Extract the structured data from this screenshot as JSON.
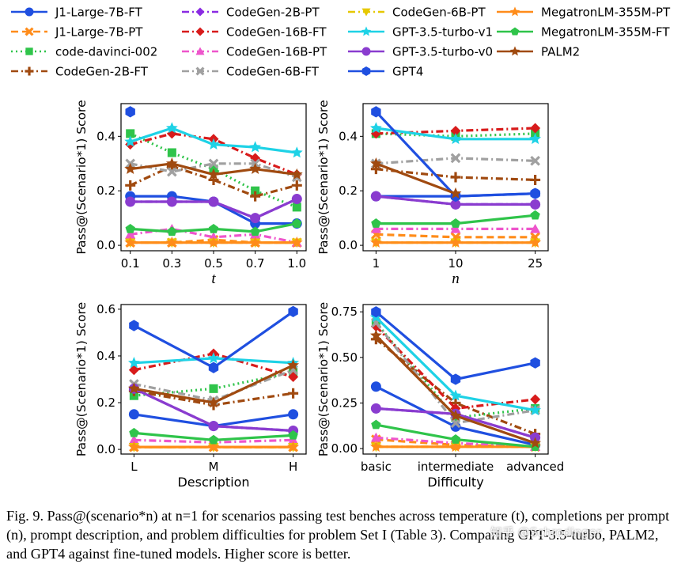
{
  "legend": {
    "entries": [
      {
        "name": "J1-Large-7B-FT",
        "color": "#1f4fe0",
        "dash": "solid",
        "marker": "circle"
      },
      {
        "name": "J1-Large-7B-PT",
        "color": "#ff8c1a",
        "dash": "dashed",
        "marker": "x"
      },
      {
        "name": "code-davinci-002",
        "color": "#2fc44a",
        "dash": "dotted",
        "marker": "square"
      },
      {
        "name": "CodeGen-2B-FT",
        "color": "#a04a10",
        "dash": "dashdot",
        "marker": "plus"
      },
      {
        "name": "CodeGen-2B-PT",
        "color": "#8a2be2",
        "dash": "dashdot",
        "marker": "diamond"
      },
      {
        "name": "CodeGen-16B-FT",
        "color": "#d81b1b",
        "dash": "dashdot",
        "marker": "diamond"
      },
      {
        "name": "CodeGen-16B-PT",
        "color": "#ee55cc",
        "dash": "dashdot",
        "marker": "triangle"
      },
      {
        "name": "CodeGen-6B-FT",
        "color": "#a0a0a0",
        "dash": "dashdot",
        "marker": "x"
      },
      {
        "name": "CodeGen-6B-PT",
        "color": "#e6c800",
        "dash": "dashdot",
        "marker": "triangle-down"
      },
      {
        "name": "GPT-3.5-turbo-v1",
        "color": "#1ed2e6",
        "dash": "solid",
        "marker": "star"
      },
      {
        "name": "GPT-3.5-turbo-v0",
        "color": "#8a3ccf",
        "dash": "solid",
        "marker": "circle"
      },
      {
        "name": "GPT4",
        "color": "#1f4fe0",
        "dash": "solid",
        "marker": "hexagon"
      },
      {
        "name": "MegatronLM-355M-PT",
        "color": "#ff8c1a",
        "dash": "solid",
        "marker": "star"
      },
      {
        "name": "MegatronLM-355M-FT",
        "color": "#2fc44a",
        "dash": "solid",
        "marker": "pentagon"
      },
      {
        "name": "PALM2",
        "color": "#a04a10",
        "dash": "solid",
        "marker": "star"
      }
    ]
  },
  "chart_data": [
    {
      "type": "line",
      "xlabel": "t",
      "ylabel": "Pass@(Scenario*1) Score",
      "categories": [
        "0.1",
        "0.3",
        "0.5",
        "0.7",
        "1.0"
      ],
      "ylim": [
        -0.02,
        0.52
      ],
      "yticks": [
        "0.0",
        "0.2",
        "0.4"
      ],
      "grid": false,
      "series": [
        {
          "name": "J1-Large-7B-FT",
          "values": [
            0.18,
            0.18,
            0.16,
            0.08,
            0.08
          ]
        },
        {
          "name": "J1-Large-7B-PT",
          "values": [
            0.01,
            0.01,
            0.02,
            0.01,
            0.01
          ]
        },
        {
          "name": "code-davinci-002",
          "values": [
            0.41,
            0.34,
            0.28,
            0.2,
            0.14
          ]
        },
        {
          "name": "CodeGen-2B-FT",
          "values": [
            0.22,
            0.29,
            0.24,
            0.18,
            0.22
          ]
        },
        {
          "name": "CodeGen-2B-PT",
          "values": [
            0.16,
            0.16,
            0.16,
            0.1,
            0.17
          ]
        },
        {
          "name": "CodeGen-16B-FT",
          "values": [
            0.37,
            0.41,
            0.39,
            0.32,
            0.26
          ]
        },
        {
          "name": "CodeGen-16B-PT",
          "values": [
            0.04,
            0.06,
            0.03,
            0.04,
            0.01
          ]
        },
        {
          "name": "CodeGen-6B-FT",
          "values": [
            0.3,
            0.27,
            0.3,
            0.3,
            0.25
          ]
        },
        {
          "name": "CodeGen-6B-PT",
          "values": [
            0.01,
            0.01,
            0.01,
            0.01,
            0.01
          ]
        },
        {
          "name": "GPT-3.5-turbo-v1",
          "values": [
            0.38,
            0.43,
            0.37,
            0.36,
            0.34
          ]
        },
        {
          "name": "GPT-3.5-turbo-v0",
          "values": [
            0.16,
            0.16,
            0.16,
            0.1,
            0.17
          ]
        },
        {
          "name": "GPT4",
          "values": [
            0.49,
            null,
            null,
            null,
            null
          ]
        },
        {
          "name": "MegatronLM-355M-PT",
          "values": [
            0.01,
            0.01,
            0.01,
            0.01,
            0.01
          ]
        },
        {
          "name": "MegatronLM-355M-FT",
          "values": [
            0.06,
            0.05,
            0.06,
            0.05,
            0.08
          ]
        },
        {
          "name": "PALM2",
          "values": [
            0.28,
            0.3,
            0.26,
            0.28,
            0.26
          ]
        }
      ]
    },
    {
      "type": "line",
      "xlabel": "n",
      "ylabel": "Pass@(Scenario*1) Score",
      "categories": [
        "1",
        "10",
        "25"
      ],
      "ylim": [
        -0.02,
        0.52
      ],
      "yticks": [
        "0.0",
        "0.2",
        "0.4"
      ],
      "grid": false,
      "series": [
        {
          "name": "J1-Large-7B-FT",
          "values": [
            0.18,
            0.18,
            0.19
          ]
        },
        {
          "name": "J1-Large-7B-PT",
          "values": [
            0.04,
            0.03,
            0.03
          ]
        },
        {
          "name": "code-davinci-002",
          "values": [
            0.41,
            0.4,
            0.41
          ]
        },
        {
          "name": "CodeGen-2B-FT",
          "values": [
            0.28,
            0.25,
            0.24
          ]
        },
        {
          "name": "CodeGen-2B-PT",
          "values": [
            0.18,
            0.15,
            0.15
          ]
        },
        {
          "name": "CodeGen-16B-FT",
          "values": [
            0.41,
            0.42,
            0.43
          ]
        },
        {
          "name": "CodeGen-16B-PT",
          "values": [
            0.06,
            0.06,
            0.06
          ]
        },
        {
          "name": "CodeGen-6B-FT",
          "values": [
            0.3,
            0.32,
            0.31
          ]
        },
        {
          "name": "CodeGen-6B-PT",
          "values": [
            0.01,
            0.01,
            0.01
          ]
        },
        {
          "name": "GPT-3.5-turbo-v1",
          "values": [
            0.43,
            0.39,
            0.39
          ]
        },
        {
          "name": "GPT-3.5-turbo-v0",
          "values": [
            0.18,
            0.15,
            0.15
          ]
        },
        {
          "name": "GPT4",
          "values": [
            0.49,
            0.18,
            0.19
          ]
        },
        {
          "name": "MegatronLM-355M-PT",
          "values": [
            0.01,
            0.01,
            0.01
          ]
        },
        {
          "name": "MegatronLM-355M-FT",
          "values": [
            0.08,
            0.08,
            0.11
          ]
        },
        {
          "name": "PALM2",
          "values": [
            0.3,
            0.19,
            null
          ]
        }
      ]
    },
    {
      "type": "line",
      "xlabel": "Description",
      "ylabel": "Pass@(Scenario*1) Score",
      "categories": [
        "L",
        "M",
        "H"
      ],
      "ylim": [
        -0.02,
        0.62
      ],
      "yticks": [
        "0.0",
        "0.2",
        "0.4",
        "0.6"
      ],
      "grid": false,
      "series": [
        {
          "name": "J1-Large-7B-FT",
          "values": [
            0.15,
            0.1,
            0.15
          ]
        },
        {
          "name": "J1-Large-7B-PT",
          "values": [
            0.01,
            0.01,
            0.01
          ]
        },
        {
          "name": "code-davinci-002",
          "values": [
            0.23,
            0.26,
            0.33
          ]
        },
        {
          "name": "CodeGen-2B-FT",
          "values": [
            0.25,
            0.19,
            0.24
          ]
        },
        {
          "name": "CodeGen-2B-PT",
          "values": [
            0.26,
            0.1,
            0.08
          ]
        },
        {
          "name": "CodeGen-16B-FT",
          "values": [
            0.34,
            0.41,
            0.31
          ]
        },
        {
          "name": "CodeGen-16B-PT",
          "values": [
            0.04,
            0.03,
            0.04
          ]
        },
        {
          "name": "CodeGen-6B-FT",
          "values": [
            0.28,
            0.21,
            0.34
          ]
        },
        {
          "name": "CodeGen-6B-PT",
          "values": [
            0.01,
            0.01,
            0.01
          ]
        },
        {
          "name": "GPT-3.5-turbo-v1",
          "values": [
            0.37,
            0.39,
            0.37
          ]
        },
        {
          "name": "GPT-3.5-turbo-v0",
          "values": [
            0.26,
            0.1,
            0.08
          ]
        },
        {
          "name": "GPT4",
          "values": [
            0.53,
            0.35,
            0.59
          ]
        },
        {
          "name": "MegatronLM-355M-PT",
          "values": [
            0.01,
            0.01,
            0.01
          ]
        },
        {
          "name": "MegatronLM-355M-FT",
          "values": [
            0.07,
            0.04,
            0.06
          ]
        },
        {
          "name": "PALM2",
          "values": [
            0.26,
            0.2,
            0.36
          ]
        }
      ]
    },
    {
      "type": "line",
      "xlabel": "Difficulty",
      "ylabel": "Pass@(Scenario*1) Score",
      "categories": [
        "basic",
        "intermediate",
        "advanced"
      ],
      "ylim": [
        -0.03,
        0.79
      ],
      "yticks": [
        "0.00",
        "0.25",
        "0.50",
        "0.75"
      ],
      "grid": false,
      "series": [
        {
          "name": "J1-Large-7B-FT",
          "values": [
            0.34,
            0.12,
            0.02
          ]
        },
        {
          "name": "J1-Large-7B-PT",
          "values": [
            0.05,
            0.02,
            0.01
          ]
        },
        {
          "name": "code-davinci-002",
          "values": [
            0.69,
            0.17,
            0.22
          ]
        },
        {
          "name": "CodeGen-2B-FT",
          "values": [
            0.6,
            0.25,
            0.08
          ]
        },
        {
          "name": "CodeGen-2B-PT",
          "values": [
            0.22,
            0.19,
            0.06
          ]
        },
        {
          "name": "CodeGen-16B-FT",
          "values": [
            0.67,
            0.22,
            0.27
          ]
        },
        {
          "name": "CodeGen-16B-PT",
          "values": [
            0.06,
            0.03,
            0.01
          ]
        },
        {
          "name": "CodeGen-6B-FT",
          "values": [
            0.69,
            0.14,
            0.21
          ]
        },
        {
          "name": "CodeGen-6B-PT",
          "values": [
            0.01,
            0.01,
            0.01
          ]
        },
        {
          "name": "GPT-3.5-turbo-v1",
          "values": [
            0.72,
            0.29,
            0.21
          ]
        },
        {
          "name": "GPT-3.5-turbo-v0",
          "values": [
            0.22,
            0.19,
            0.06
          ]
        },
        {
          "name": "GPT4",
          "values": [
            0.75,
            0.38,
            0.47
          ]
        },
        {
          "name": "MegatronLM-355M-PT",
          "values": [
            0.01,
            0.01,
            0.01
          ]
        },
        {
          "name": "MegatronLM-355M-FT",
          "values": [
            0.13,
            0.05,
            0.01
          ]
        },
        {
          "name": "PALM2",
          "values": [
            0.62,
            0.18,
            0.03
          ]
        }
      ]
    }
  ],
  "caption": {
    "text": "Fig. 9.  Pass@(scenario*n) at n=1 for scenarios passing test benches across temperature (t), completions per prompt (n), prompt description, and problem difficulties for problem Set I (Table 3). Comparing GPT-3.5-turbo, PALM2, and GPT4 against fine-tuned models. Higher score is better."
  },
  "watermark": {
    "text": "知乎 @Schrodinger"
  }
}
